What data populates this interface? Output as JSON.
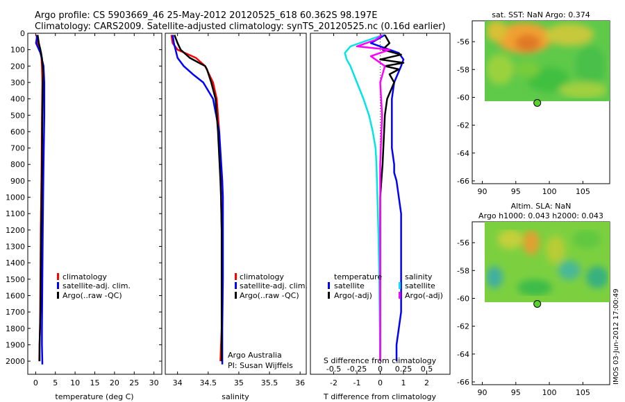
{
  "header": {
    "line1": "Argo profile: CS 5903669_46 25-May-2012 20120525_618 60.362S 98.197E",
    "line2": "Climatology: CARS2009. Satellite-adjusted climatology: synTS_20120525.nc (0.16d earlier)"
  },
  "side_stamp": "IMOS 03-Jun-2012 17:00:49",
  "colors": {
    "climatology": "#ff0000",
    "satellite": "#0000ff",
    "argo": "#000000",
    "sat_salinity": "#00e5e5",
    "argo_salinity": "#ff00ff"
  },
  "chart_data": [
    {
      "id": "temperature",
      "type": "line",
      "xlabel": "temperature (deg C)",
      "ylabel": "",
      "xlim": [
        -2,
        32
      ],
      "ylim": [
        2080,
        0
      ],
      "xticks": [
        0,
        5,
        10,
        15,
        20,
        25,
        30
      ],
      "yticks": [
        0,
        100,
        200,
        300,
        400,
        500,
        600,
        700,
        800,
        900,
        1000,
        1100,
        1200,
        1300,
        1400,
        1500,
        1600,
        1700,
        1800,
        1900,
        2000
      ],
      "legend": [
        "climatology",
        "satellite-adj. clim.",
        "Argo(..raw -QC)"
      ],
      "series": [
        {
          "name": "climatology",
          "color": "#ff0000",
          "x": [
            0.2,
            0.5,
            1.4,
            1.6,
            1.7,
            1.6,
            1.5,
            1.4,
            1.3,
            1.2,
            1.1,
            1.0,
            0.9
          ],
          "y": [
            10,
            60,
            120,
            200,
            300,
            500,
            800,
            1000,
            1200,
            1500,
            1800,
            1900,
            2000
          ]
        },
        {
          "name": "satellite-adj. clim.",
          "color": "#0000ff",
          "x": [
            0.4,
            0.1,
            1.2,
            2.0,
            2.2,
            2.2,
            2.0,
            1.9,
            1.8,
            1.7,
            1.6,
            1.6,
            1.7
          ],
          "y": [
            10,
            60,
            120,
            200,
            300,
            500,
            800,
            1000,
            1200,
            1500,
            1800,
            1900,
            2020
          ]
        },
        {
          "name": "Argo(..raw -QC)",
          "color": "#000000",
          "x": [
            0.5,
            0.8,
            1.2,
            1.6,
            1.7,
            1.8,
            1.9,
            1.8,
            1.7,
            1.6,
            1.5,
            1.4,
            1.3,
            1.2,
            1.1,
            1.0,
            1.0
          ],
          "y": [
            10,
            60,
            100,
            150,
            180,
            200,
            250,
            300,
            500,
            800,
            1000,
            1200,
            1500,
            1700,
            1800,
            1900,
            2000
          ]
        }
      ]
    },
    {
      "id": "salinity",
      "type": "line",
      "xlabel": "salinity",
      "ylabel": "",
      "xlim": [
        33.8,
        36.1
      ],
      "ylim": [
        2080,
        0
      ],
      "xticks": [
        34,
        34.5,
        35,
        35.5,
        36
      ],
      "xtick_labels": [
        "34",
        "34.5",
        "35",
        "35.5",
        "36"
      ],
      "legend": [
        "climatology",
        "satellite-adj. clim.",
        "Argo(..raw -QC)"
      ],
      "annotations": [
        "Argo Australia",
        "PI: Susan Wijffels"
      ],
      "series": [
        {
          "name": "climatology",
          "color": "#ff0000",
          "x": [
            33.9,
            33.92,
            34.0,
            34.3,
            34.45,
            34.58,
            34.64,
            34.68,
            34.7,
            34.71,
            34.72,
            34.72,
            34.72,
            34.71,
            34.7
          ],
          "y": [
            10,
            60,
            100,
            150,
            200,
            300,
            400,
            600,
            800,
            1000,
            1200,
            1500,
            1800,
            1900,
            2000
          ]
        },
        {
          "name": "satellite-adj. clim.",
          "color": "#0000ff",
          "x": [
            33.92,
            33.94,
            34.0,
            34.1,
            34.25,
            34.42,
            34.58,
            34.68,
            34.73,
            34.74,
            34.74,
            34.74,
            34.73,
            34.73
          ],
          "y": [
            10,
            60,
            150,
            200,
            250,
            300,
            400,
            600,
            900,
            1000,
            1200,
            1500,
            1800,
            2020
          ]
        },
        {
          "name": "Argo(..raw -QC)",
          "color": "#000000",
          "x": [
            33.95,
            34.0,
            34.05,
            34.2,
            34.35,
            34.45,
            34.48,
            34.55,
            34.62,
            34.66,
            34.7,
            34.71,
            34.72,
            34.72,
            34.72,
            34.72,
            34.72
          ],
          "y": [
            10,
            60,
            100,
            150,
            180,
            200,
            220,
            300,
            400,
            600,
            900,
            1000,
            1200,
            1500,
            1800,
            1900,
            2000
          ]
        }
      ]
    },
    {
      "id": "difference",
      "type": "line",
      "xlabel": "T difference from climatology",
      "x2label": "S difference from climatology",
      "ylabel": "",
      "xlim": [
        -3,
        3
      ],
      "ylim": [
        2080,
        0
      ],
      "xticks": [
        -2,
        -1,
        0,
        1,
        2
      ],
      "x2ticks": [
        -0.5,
        -0.25,
        0,
        0.25,
        0.5
      ],
      "x2tick_labels": [
        "-0.5",
        "-0.25",
        "0",
        "0.25",
        "0.5"
      ],
      "legend_temperature": {
        "title": "temperature",
        "items": [
          "satellite",
          "Argo(-adj)"
        ]
      },
      "legend_salinity": {
        "title": "salinity",
        "items": [
          "satellite",
          "Argo(-adj)"
        ]
      },
      "series": [
        {
          "name": "temperature satellite",
          "color": "#0000ff",
          "x": [
            0.2,
            -0.4,
            0.8,
            1.0,
            0.9,
            0.6,
            0.5,
            0.5,
            0.5,
            0.6,
            0.6,
            0.7,
            0.8,
            0.9,
            0.9,
            0.9,
            0.9,
            0.9,
            0.8,
            0.7,
            0.7
          ],
          "y": [
            10,
            60,
            120,
            160,
            200,
            300,
            400,
            500,
            700,
            800,
            850,
            900,
            1000,
            1100,
            1200,
            1300,
            1500,
            1700,
            1800,
            1900,
            2000
          ]
        },
        {
          "name": "temperature Argo(-adj)",
          "color": "#000000",
          "x": [
            0.2,
            0.4,
            0.1,
            0.9,
            0.0,
            1.0,
            0.2,
            0.8,
            0.4,
            0.6,
            0.3,
            0.2,
            0.1,
            0.0,
            0.0,
            0.0,
            0.0
          ],
          "y": [
            10,
            60,
            100,
            130,
            160,
            180,
            200,
            220,
            250,
            300,
            400,
            500,
            800,
            1000,
            1500,
            1800,
            2000
          ]
        },
        {
          "name": "salinity satellite",
          "color": "#00e5e5",
          "x": [
            0.03,
            -0.12,
            -0.32,
            -0.38,
            -0.36,
            -0.32,
            -0.25,
            -0.18,
            -0.12,
            -0.08,
            -0.05,
            -0.04,
            -0.03,
            -0.02,
            -0.01,
            0.0
          ],
          "y": [
            10,
            40,
            80,
            120,
            160,
            200,
            300,
            400,
            500,
            600,
            700,
            800,
            1000,
            1200,
            1500,
            2000
          ]
        },
        {
          "name": "salinity Argo(-adj)",
          "color": "#ff00ff",
          "x": [
            0.02,
            -0.05,
            -0.25,
            0.1,
            -0.1,
            0.05,
            0.0,
            0.02,
            0.0,
            0.0,
            0.0,
            0.0
          ],
          "y": [
            10,
            40,
            80,
            100,
            140,
            200,
            300,
            500,
            800,
            1200,
            1600,
            2000
          ]
        }
      ]
    },
    {
      "id": "sst_map",
      "type": "heatmap",
      "title": "sat. SST: NaN Argo: 0.374",
      "xlim": [
        88.5,
        109
      ],
      "ylim": [
        -66.2,
        -54.5
      ],
      "xticks": [
        90,
        95,
        100,
        105
      ],
      "yticks": [
        -56,
        -58,
        -60,
        -62,
        -64,
        -66
      ],
      "data_region": {
        "lon": [
          88.5,
          109
        ],
        "lat": [
          -60.3,
          -54.5
        ]
      },
      "profile_marker": {
        "lon": 98.2,
        "lat": -60.4
      }
    },
    {
      "id": "sla_map",
      "type": "heatmap",
      "title": "Altim. SLA: NaN",
      "subtitle": "Argo h1000: 0.043 h2000: 0.043",
      "xlim": [
        88.5,
        109
      ],
      "ylim": [
        -66.2,
        -54.5
      ],
      "xticks": [
        90,
        95,
        100,
        105
      ],
      "yticks": [
        -56,
        -58,
        -60,
        -62,
        -64,
        -66
      ],
      "data_region": {
        "lon": [
          88.5,
          109
        ],
        "lat": [
          -60.0,
          -54.5
        ]
      },
      "profile_marker": {
        "lon": 98.2,
        "lat": -60.4
      }
    }
  ]
}
